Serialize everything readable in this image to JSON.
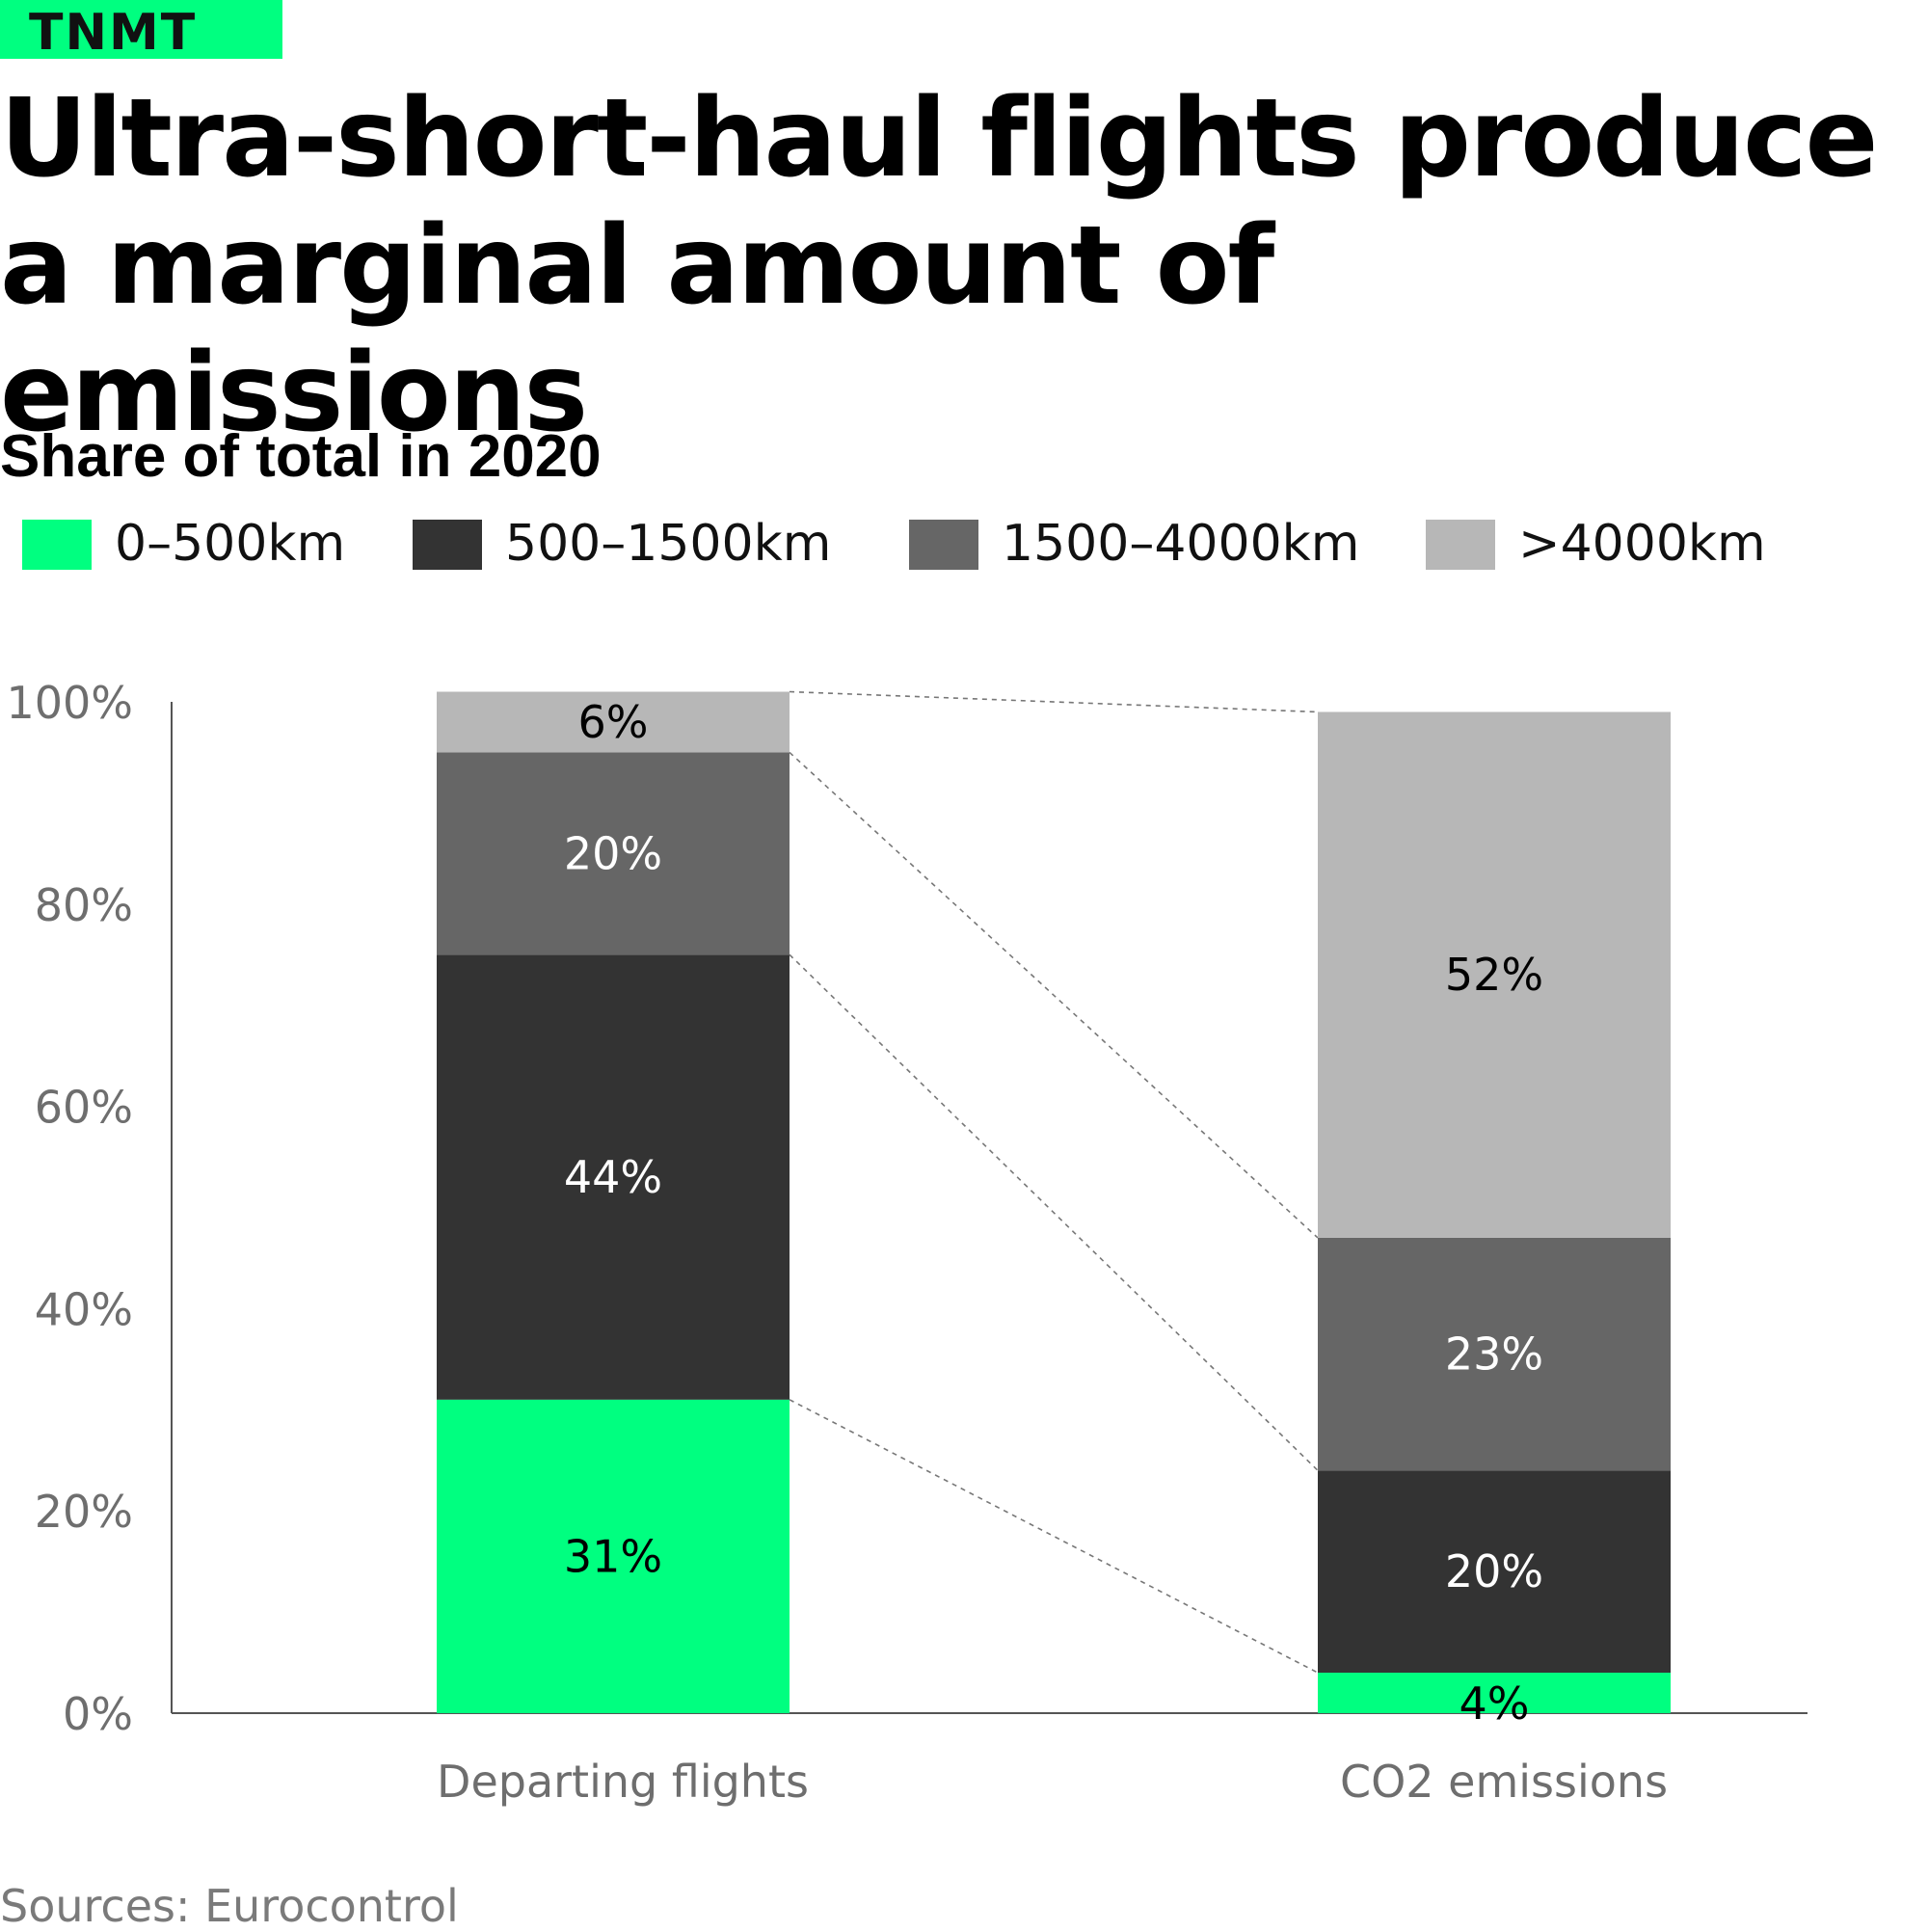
{
  "brand": {
    "label": "TNMT"
  },
  "title": "Ultra-short-haul flights produce a marginal amount of emissions",
  "subtitle": "Share of total in 2020",
  "source": "Sources: Eurocontrol",
  "colors": {
    "brand": "#00ff80",
    "0-500km": "#00ff80",
    "500-1500km": "#333333",
    "1500-4000km": "#666666",
    ">4000km": "#b7b7b7"
  },
  "legend": [
    {
      "label": "0–500km",
      "color": "#00ff80"
    },
    {
      "label": "500–1500km",
      "color": "#333333"
    },
    {
      "label": "1500–4000km",
      "color": "#666666"
    },
    {
      "label": ">4000km",
      "color": "#b7b7b7"
    }
  ],
  "chart_data": {
    "type": "bar",
    "stacked": true,
    "categories": [
      "Departing flights",
      "CO2 emissions"
    ],
    "series": [
      {
        "name": "0–500km",
        "values": [
          31,
          4
        ],
        "labels": [
          "31%",
          "4%"
        ],
        "color": "#00ff80",
        "label_color": "#000000"
      },
      {
        "name": "500–1500km",
        "values": [
          44,
          20
        ],
        "labels": [
          "44%",
          "20%"
        ],
        "color": "#333333",
        "label_color": "#ffffff"
      },
      {
        "name": "1500–4000km",
        "values": [
          20,
          23
        ],
        "labels": [
          "20%",
          "23%"
        ],
        "color": "#666666",
        "label_color": "#ffffff"
      },
      {
        "name": ">4000km",
        "values": [
          6,
          52
        ],
        "labels": [
          "6%",
          "52%"
        ],
        "color": "#b7b7b7",
        "label_color": "#000000"
      }
    ],
    "ylim": [
      0,
      100
    ],
    "yticks": [
      0,
      20,
      40,
      60,
      80,
      100
    ],
    "ytick_labels": [
      "0%",
      "20%",
      "40%",
      "60%",
      "80%",
      "100%"
    ],
    "xlabel": "",
    "ylabel": "",
    "grid": false,
    "legend_position": "top-left",
    "connector_lines": "dashed"
  }
}
